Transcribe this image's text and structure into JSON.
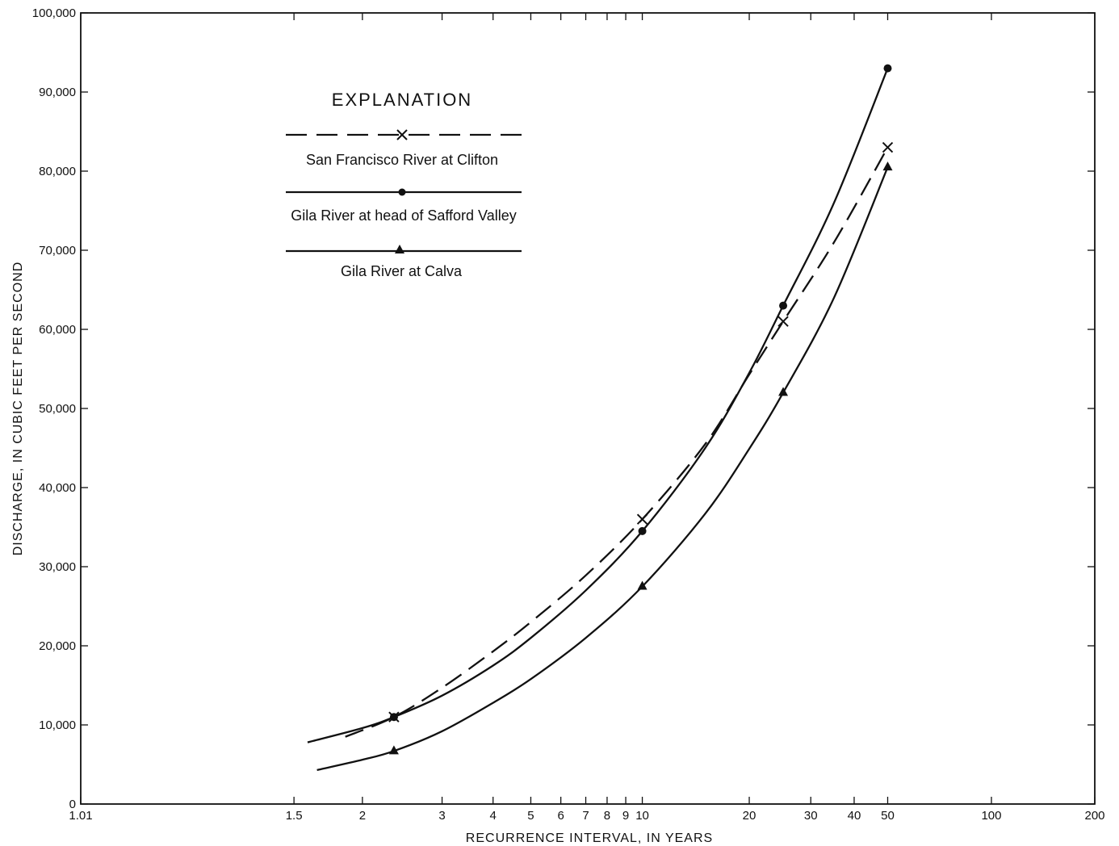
{
  "chart_data": {
    "type": "line",
    "x_scale": "gumbel",
    "xlabel": "RECURRENCE INTERVAL, IN YEARS",
    "ylabel": "DISCHARGE, IN CUBIC FEET PER SECOND",
    "xlim": [
      1.01,
      200
    ],
    "ylim": [
      0,
      100000
    ],
    "x_ticks": [
      {
        "value": 1.01,
        "label": "1.01"
      },
      {
        "value": 1.5,
        "label": "1.5"
      },
      {
        "value": 2,
        "label": "2"
      },
      {
        "value": 3,
        "label": "3"
      },
      {
        "value": 4,
        "label": "4"
      },
      {
        "value": 5,
        "label": "5"
      },
      {
        "value": 6,
        "label": "6"
      },
      {
        "value": 7,
        "label": "7"
      },
      {
        "value": 8,
        "label": "8"
      },
      {
        "value": 9,
        "label": "9"
      },
      {
        "value": 10,
        "label": "10"
      },
      {
        "value": 20,
        "label": "20"
      },
      {
        "value": 30,
        "label": "30"
      },
      {
        "value": 40,
        "label": "40"
      },
      {
        "value": 50,
        "label": "50"
      },
      {
        "value": 100,
        "label": "100"
      },
      {
        "value": 200,
        "label": "200"
      }
    ],
    "y_ticks": [
      {
        "value": 0,
        "label": "0"
      },
      {
        "value": 10000,
        "label": "10,000"
      },
      {
        "value": 20000,
        "label": "20,000"
      },
      {
        "value": 30000,
        "label": "30,000"
      },
      {
        "value": 40000,
        "label": "40,000"
      },
      {
        "value": 50000,
        "label": "50,000"
      },
      {
        "value": 60000,
        "label": "60,000"
      },
      {
        "value": 70000,
        "label": "70,000"
      },
      {
        "value": 80000,
        "label": "80,000"
      },
      {
        "value": 90000,
        "label": "90,000"
      },
      {
        "value": 100000,
        "label": "100,000"
      }
    ],
    "legend": {
      "title": "EXPLANATION",
      "placement": "top-left"
    },
    "grid": false,
    "series": [
      {
        "name": "San Francisco River at Clifton",
        "line": "dashed",
        "marker": "x",
        "points": [
          [
            2.33,
            11000
          ],
          [
            10,
            36000
          ],
          [
            25,
            61000
          ],
          [
            50,
            83000
          ]
        ],
        "curve": [
          [
            1.85,
            8500
          ],
          [
            2.33,
            11000
          ],
          [
            3,
            14700
          ],
          [
            4,
            19300
          ],
          [
            5,
            23000
          ],
          [
            7,
            28900
          ],
          [
            10,
            36000
          ],
          [
            15,
            45500
          ],
          [
            20,
            54300
          ],
          [
            25,
            61000
          ],
          [
            35,
            71000
          ],
          [
            50,
            83000
          ]
        ]
      },
      {
        "name": "Gila River at head of Safford Valley",
        "line": "solid",
        "marker": "circle",
        "points": [
          [
            2.33,
            11000
          ],
          [
            10,
            34500
          ],
          [
            25,
            63000
          ],
          [
            50,
            93000
          ]
        ],
        "curve": [
          [
            1.58,
            7800
          ],
          [
            2,
            9600
          ],
          [
            2.33,
            11000
          ],
          [
            3,
            13700
          ],
          [
            4,
            17500
          ],
          [
            5,
            21000
          ],
          [
            7,
            27000
          ],
          [
            10,
            34500
          ],
          [
            15,
            45000
          ],
          [
            20,
            54500
          ],
          [
            25,
            63000
          ],
          [
            35,
            76000
          ],
          [
            50,
            93000
          ]
        ]
      },
      {
        "name": "Gila River at Calva",
        "line": "solid",
        "marker": "triangle",
        "points": [
          [
            2.33,
            6700
          ],
          [
            10,
            27500
          ],
          [
            25,
            52000
          ],
          [
            50,
            80500
          ]
        ],
        "curve": [
          [
            1.64,
            4300
          ],
          [
            2,
            5600
          ],
          [
            2.33,
            6700
          ],
          [
            3,
            9200
          ],
          [
            4,
            12800
          ],
          [
            5,
            15800
          ],
          [
            7,
            21000
          ],
          [
            10,
            27500
          ],
          [
            15,
            36700
          ],
          [
            20,
            44900
          ],
          [
            25,
            52000
          ],
          [
            35,
            64000
          ],
          [
            50,
            80500
          ]
        ]
      }
    ]
  }
}
